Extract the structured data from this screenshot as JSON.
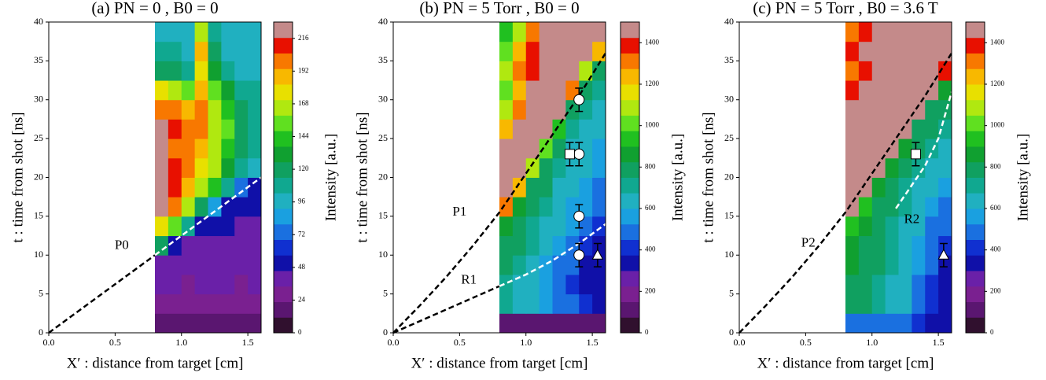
{
  "colormap": [
    "#30102e",
    "#5a1670",
    "#7a2090",
    "#6a20a8",
    "#1010a8",
    "#1030d0",
    "#1a70e0",
    "#1aa0e0",
    "#20b0c0",
    "#10a890",
    "#10a060",
    "#10a030",
    "#20c020",
    "#60e020",
    "#b0e810",
    "#e8e000",
    "#f8b800",
    "#f87800",
    "#e81000",
    "#c48a8a"
  ],
  "chart_data": [
    {
      "type": "heatmap",
      "title": "(a) PN = 0 , B0 = 0",
      "xlabel": "X′ : distance from target [cm]",
      "ylabel": "t : time from shot [ns]",
      "colorbar_label": "Intensity [a.u.]",
      "xlim": [
        0,
        1.6
      ],
      "xticks": [
        {
          "value": 0,
          "label": "0.0"
        },
        0.5,
        {
          "value": 1,
          "label": "1.0"
        },
        1.5
      ],
      "ylim": [
        0,
        40
      ],
      "yticks": [
        0,
        5,
        10,
        15,
        20,
        25,
        30,
        35,
        40
      ],
      "clim": [
        0,
        228
      ],
      "cticks": [
        0,
        24,
        48,
        72,
        96,
        120,
        144,
        168,
        192,
        216
      ],
      "heatmap": {
        "x": [
          0.8,
          0.9,
          1.0,
          1.1,
          1.2,
          1.3,
          1.4,
          1.5,
          1.6
        ],
        "y": [
          0,
          2.5,
          5,
          7.5,
          10,
          12.5,
          15,
          17.5,
          20,
          22.5,
          25,
          27.5,
          30,
          32.5,
          35,
          37.5,
          40
        ],
        "z": [
          [
            15,
            15,
            15,
            15,
            15,
            15,
            15,
            15
          ],
          [
            30,
            30,
            28,
            30,
            30,
            28,
            30,
            30
          ],
          [
            35,
            35,
            32,
            35,
            35,
            35,
            32,
            35
          ],
          [
            40,
            38,
            38,
            40,
            38,
            40,
            38,
            38
          ],
          [
            120,
            50,
            45,
            45,
            42,
            42,
            42,
            40
          ],
          [
            180,
            150,
            110,
            55,
            50,
            48,
            45,
            45
          ],
          [
            240,
            200,
            170,
            120,
            90,
            55,
            50,
            48
          ],
          [
            240,
            210,
            190,
            160,
            140,
            110,
            75,
            55
          ],
          [
            240,
            210,
            200,
            180,
            160,
            130,
            110,
            100
          ],
          [
            240,
            200,
            200,
            190,
            170,
            140,
            120,
            110
          ],
          [
            220,
            210,
            200,
            200,
            170,
            150,
            120,
            110
          ],
          [
            200,
            200,
            190,
            200,
            160,
            140,
            120,
            110
          ],
          [
            180,
            170,
            150,
            190,
            150,
            130,
            110,
            110
          ],
          [
            120,
            120,
            110,
            180,
            130,
            110,
            100,
            100
          ],
          [
            110,
            110,
            100,
            190,
            120,
            100,
            100,
            95
          ],
          [
            100,
            100,
            95,
            170,
            110,
            100,
            95,
            95
          ]
        ]
      },
      "curves": [
        {
          "x": [
            0,
            0.8
          ],
          "y": [
            0,
            10
          ],
          "color": "#000000"
        },
        {
          "x": [
            0.8,
            1.6
          ],
          "y": [
            10,
            20
          ],
          "color": "#ffffff"
        }
      ],
      "points": [],
      "annotations": [
        {
          "text": "P0",
          "x": 0.55,
          "y": 11.2
        }
      ]
    },
    {
      "type": "heatmap",
      "title": "(b) PN = 5 Torr , B0 = 0",
      "xlabel": "X′ : distance from target [cm]",
      "ylabel": "t : time from shot [ns]",
      "colorbar_label": "Intensity [a.u.]",
      "xlim": [
        0,
        1.6
      ],
      "xticks": [
        {
          "value": 0,
          "label": "0.0"
        },
        0.5,
        {
          "value": 1,
          "label": "1.0"
        },
        1.5
      ],
      "ylim": [
        0,
        40
      ],
      "yticks": [
        0,
        5,
        10,
        15,
        20,
        25,
        30,
        35,
        40
      ],
      "clim": [
        0,
        1500
      ],
      "cticks": [
        0,
        200,
        400,
        600,
        800,
        1000,
        1200,
        1400
      ],
      "heatmap": {
        "x": [
          0.8,
          0.9,
          1.0,
          1.1,
          1.2,
          1.3,
          1.4,
          1.5,
          1.6
        ],
        "y": [
          0,
          2.5,
          5,
          7.5,
          10,
          12.5,
          15,
          17.5,
          20,
          22.5,
          25,
          27.5,
          30,
          32.5,
          35,
          37.5,
          40
        ],
        "z": [
          [
            100,
            100,
            100,
            100,
            100,
            100,
            100,
            100
          ],
          [
            700,
            650,
            600,
            550,
            500,
            450,
            400,
            350
          ],
          [
            700,
            650,
            600,
            550,
            500,
            400,
            350,
            300
          ],
          [
            800,
            700,
            650,
            550,
            500,
            450,
            350,
            300
          ],
          [
            800,
            750,
            700,
            600,
            550,
            500,
            400,
            350
          ],
          [
            850,
            800,
            700,
            650,
            600,
            550,
            500,
            400
          ],
          [
            1300,
            850,
            750,
            700,
            600,
            550,
            550,
            500
          ],
          [
            1600,
            1200,
            800,
            750,
            650,
            600,
            550,
            500
          ],
          [
            1600,
            1600,
            1100,
            800,
            700,
            600,
            600,
            550
          ],
          [
            1600,
            1600,
            1600,
            1000,
            750,
            650,
            600,
            550
          ],
          [
            1200,
            1600,
            1600,
            1600,
            900,
            700,
            650,
            600
          ],
          [
            1100,
            1300,
            1600,
            1600,
            1600,
            800,
            700,
            650
          ],
          [
            1000,
            1200,
            1600,
            1600,
            1600,
            1300,
            750,
            700
          ],
          [
            1100,
            1300,
            1400,
            1600,
            1600,
            1600,
            1100,
            750
          ],
          [
            1000,
            1200,
            1400,
            1600,
            1600,
            1600,
            1600,
            1200
          ],
          [
            900,
            1100,
            1300,
            1500,
            1600,
            1600,
            1600,
            1600
          ]
        ]
      },
      "curves": [
        {
          "x": [
            0,
            0.2,
            0.4,
            0.6,
            0.8,
            1.0,
            1.2,
            1.4,
            1.6
          ],
          "y": [
            0,
            3.5,
            7.2,
            11.2,
            15.5,
            20.5,
            25.5,
            30.5,
            36
          ],
          "color": "#000000"
        },
        {
          "x": [
            0,
            0.4,
            0.8
          ],
          "y": [
            0,
            3,
            6
          ],
          "color": "#000000"
        },
        {
          "x": [
            0.8,
            1.0,
            1.2,
            1.4,
            1.6
          ],
          "y": [
            6,
            7.5,
            9.3,
            11.5,
            14
          ],
          "color": "#ffffff"
        }
      ],
      "points": [
        {
          "shape": "circle",
          "x": 1.4,
          "y": 30,
          "yerr": 1.5
        },
        {
          "shape": "circle",
          "x": 1.4,
          "y": 23,
          "yerr": 1.5
        },
        {
          "shape": "circle",
          "x": 1.4,
          "y": 15,
          "yerr": 1.5
        },
        {
          "shape": "circle",
          "x": 1.4,
          "y": 10,
          "yerr": 1.5
        },
        {
          "shape": "square",
          "x": 1.33,
          "y": 23,
          "yerr": 1.5
        },
        {
          "shape": "triangle",
          "x": 1.54,
          "y": 10,
          "yerr": 1.5
        }
      ],
      "annotations": [
        {
          "text": "P1",
          "x": 0.5,
          "y": 15.5
        },
        {
          "text": "R1",
          "x": 0.57,
          "y": 6.7
        }
      ]
    },
    {
      "type": "heatmap",
      "title": "(c) PN = 5 Torr , B0 = 3.6 T",
      "xlabel": "X′ : distance from target [cm]",
      "ylabel": "t : time from shot [ns]",
      "colorbar_label": "Intensity [a.u.]",
      "xlim": [
        0,
        1.6
      ],
      "xticks": [
        {
          "value": 0,
          "label": "0.0"
        },
        0.5,
        {
          "value": 1,
          "label": "1.0"
        },
        1.5
      ],
      "ylim": [
        0,
        40
      ],
      "yticks": [
        0,
        5,
        10,
        15,
        20,
        25,
        30,
        35,
        40
      ],
      "clim": [
        0,
        1500
      ],
      "cticks": [
        0,
        200,
        400,
        600,
        800,
        1000,
        1200,
        1400
      ],
      "heatmap": {
        "x": [
          0.8,
          0.9,
          1.0,
          1.1,
          1.2,
          1.3,
          1.4,
          1.5,
          1.6
        ],
        "y": [
          0,
          2.5,
          5,
          7.5,
          10,
          12.5,
          15,
          17.5,
          20,
          22.5,
          25,
          27.5,
          30,
          32.5,
          35,
          37.5,
          40
        ],
        "z": [
          [
            500,
            500,
            500,
            500,
            450,
            400,
            350,
            300
          ],
          [
            800,
            750,
            700,
            650,
            600,
            500,
            400,
            350
          ],
          [
            800,
            800,
            700,
            650,
            600,
            500,
            400,
            350
          ],
          [
            850,
            800,
            750,
            700,
            650,
            550,
            450,
            350
          ],
          [
            850,
            800,
            750,
            700,
            650,
            550,
            450,
            400
          ],
          [
            900,
            850,
            750,
            700,
            650,
            600,
            500,
            450
          ],
          [
            1600,
            900,
            800,
            750,
            700,
            650,
            550,
            500
          ],
          [
            1600,
            1600,
            850,
            800,
            700,
            650,
            600,
            550
          ],
          [
            1600,
            1600,
            1600,
            850,
            800,
            700,
            650,
            600
          ],
          [
            1600,
            1600,
            1600,
            1600,
            850,
            750,
            700,
            650
          ],
          [
            1600,
            1600,
            1600,
            1600,
            1600,
            800,
            750,
            700
          ],
          [
            1600,
            1600,
            1600,
            1600,
            1600,
            1600,
            800,
            750
          ],
          [
            1400,
            1600,
            1600,
            1600,
            1600,
            1600,
            1600,
            850
          ],
          [
            1300,
            1400,
            1600,
            1600,
            1600,
            1600,
            1600,
            1400
          ],
          [
            1350,
            1450,
            1600,
            1600,
            1600,
            1600,
            1600,
            1600
          ],
          [
            1300,
            1400,
            1600,
            1600,
            1600,
            1600,
            1600,
            1600
          ]
        ]
      },
      "curves": [
        {
          "x": [
            0,
            0.2,
            0.4,
            0.6,
            0.8,
            1.0,
            1.2,
            1.4,
            1.6
          ],
          "y": [
            0,
            3.5,
            7.2,
            11.2,
            15.5,
            20.5,
            25.5,
            30.5,
            36
          ],
          "color": "#000000"
        },
        {
          "x": [
            1.18,
            1.3,
            1.4,
            1.5,
            1.6
          ],
          "y": [
            16,
            19,
            21.5,
            25,
            31
          ],
          "color": "#ffffff"
        }
      ],
      "points": [
        {
          "shape": "square",
          "x": 1.33,
          "y": 23,
          "yerr": 1.5
        },
        {
          "shape": "triangle",
          "x": 1.54,
          "y": 10,
          "yerr": 1.5
        }
      ],
      "annotations": [
        {
          "text": "P2",
          "x": 0.52,
          "y": 11.5
        },
        {
          "text": "R2",
          "x": 1.3,
          "y": 14.5
        }
      ]
    }
  ]
}
